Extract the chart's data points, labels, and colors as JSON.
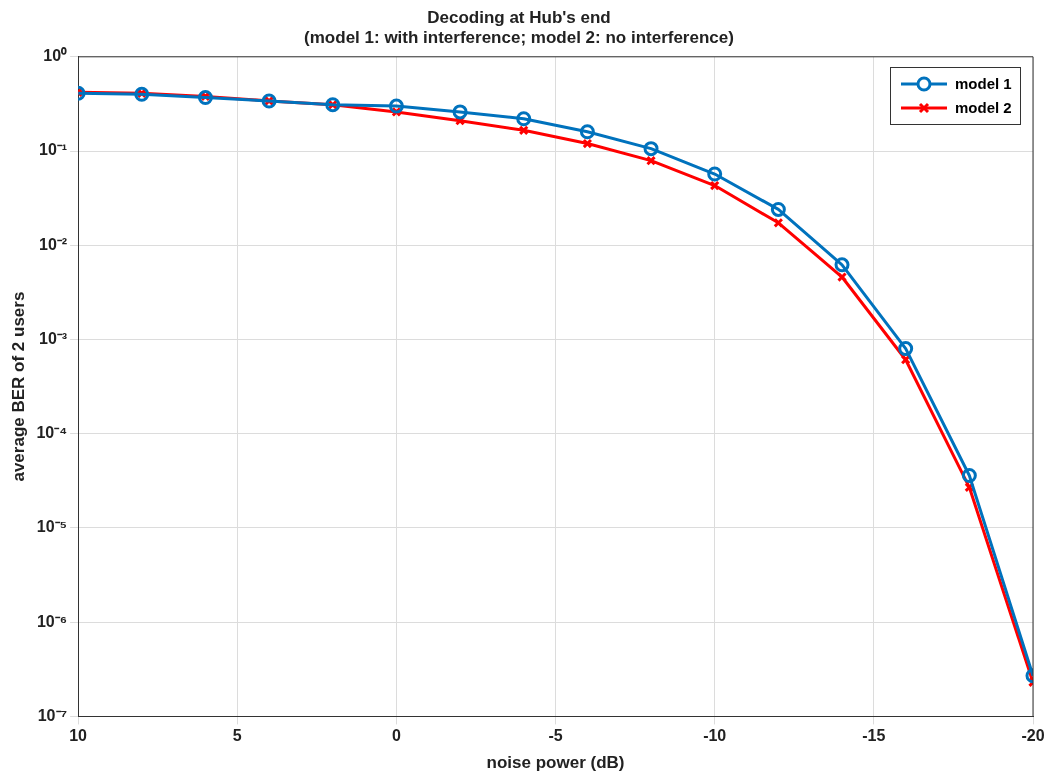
{
  "chart_data": {
    "type": "line",
    "title": "Decoding at Hub's end",
    "subtitle": "(model 1: with interference; model 2: no interference)",
    "xlabel": "noise power (dB)",
    "ylabel": "average BER of 2 users",
    "x": [
      10,
      8,
      6,
      4,
      2,
      0,
      -2,
      -4,
      -6,
      -8,
      -10,
      -12,
      -14,
      -16,
      -18,
      -20
    ],
    "series": [
      {
        "name": "model 1",
        "color": "#0072bd",
        "marker": "circle",
        "values": [
          0.41,
          0.4,
          0.37,
          0.34,
          0.31,
          0.3,
          0.26,
          0.22,
          0.16,
          0.106,
          0.057,
          0.024,
          0.0062,
          0.0008,
          3.6e-05,
          2.7e-07
        ]
      },
      {
        "name": "model 2",
        "color": "#ff0000",
        "marker": "cross",
        "values": [
          0.42,
          0.41,
          0.38,
          0.34,
          0.31,
          0.26,
          0.21,
          0.166,
          0.12,
          0.079,
          0.043,
          0.0173,
          0.0046,
          0.00061,
          2.7e-05,
          2.3e-07
        ]
      }
    ],
    "log": "y",
    "xlim": [
      10,
      -20
    ],
    "xticks": [
      10,
      5,
      0,
      -5,
      -10,
      -15,
      -20
    ],
    "ylim": [
      1e-07,
      1
    ],
    "yticks": [
      {
        "value": 1e-07,
        "label": "10⁻⁷"
      },
      {
        "value": 1e-06,
        "label": "10⁻⁶"
      },
      {
        "value": 1e-05,
        "label": "10⁻⁵"
      },
      {
        "value": 0.0001,
        "label": "10⁻⁴"
      },
      {
        "value": 0.001,
        "label": "10⁻³"
      },
      {
        "value": 0.01,
        "label": "10⁻²"
      },
      {
        "value": 0.1,
        "label": "10⁻¹"
      },
      {
        "value": 1,
        "label": "10⁰"
      }
    ],
    "grid": true,
    "legend": "top right",
    "line_style": "solid"
  }
}
